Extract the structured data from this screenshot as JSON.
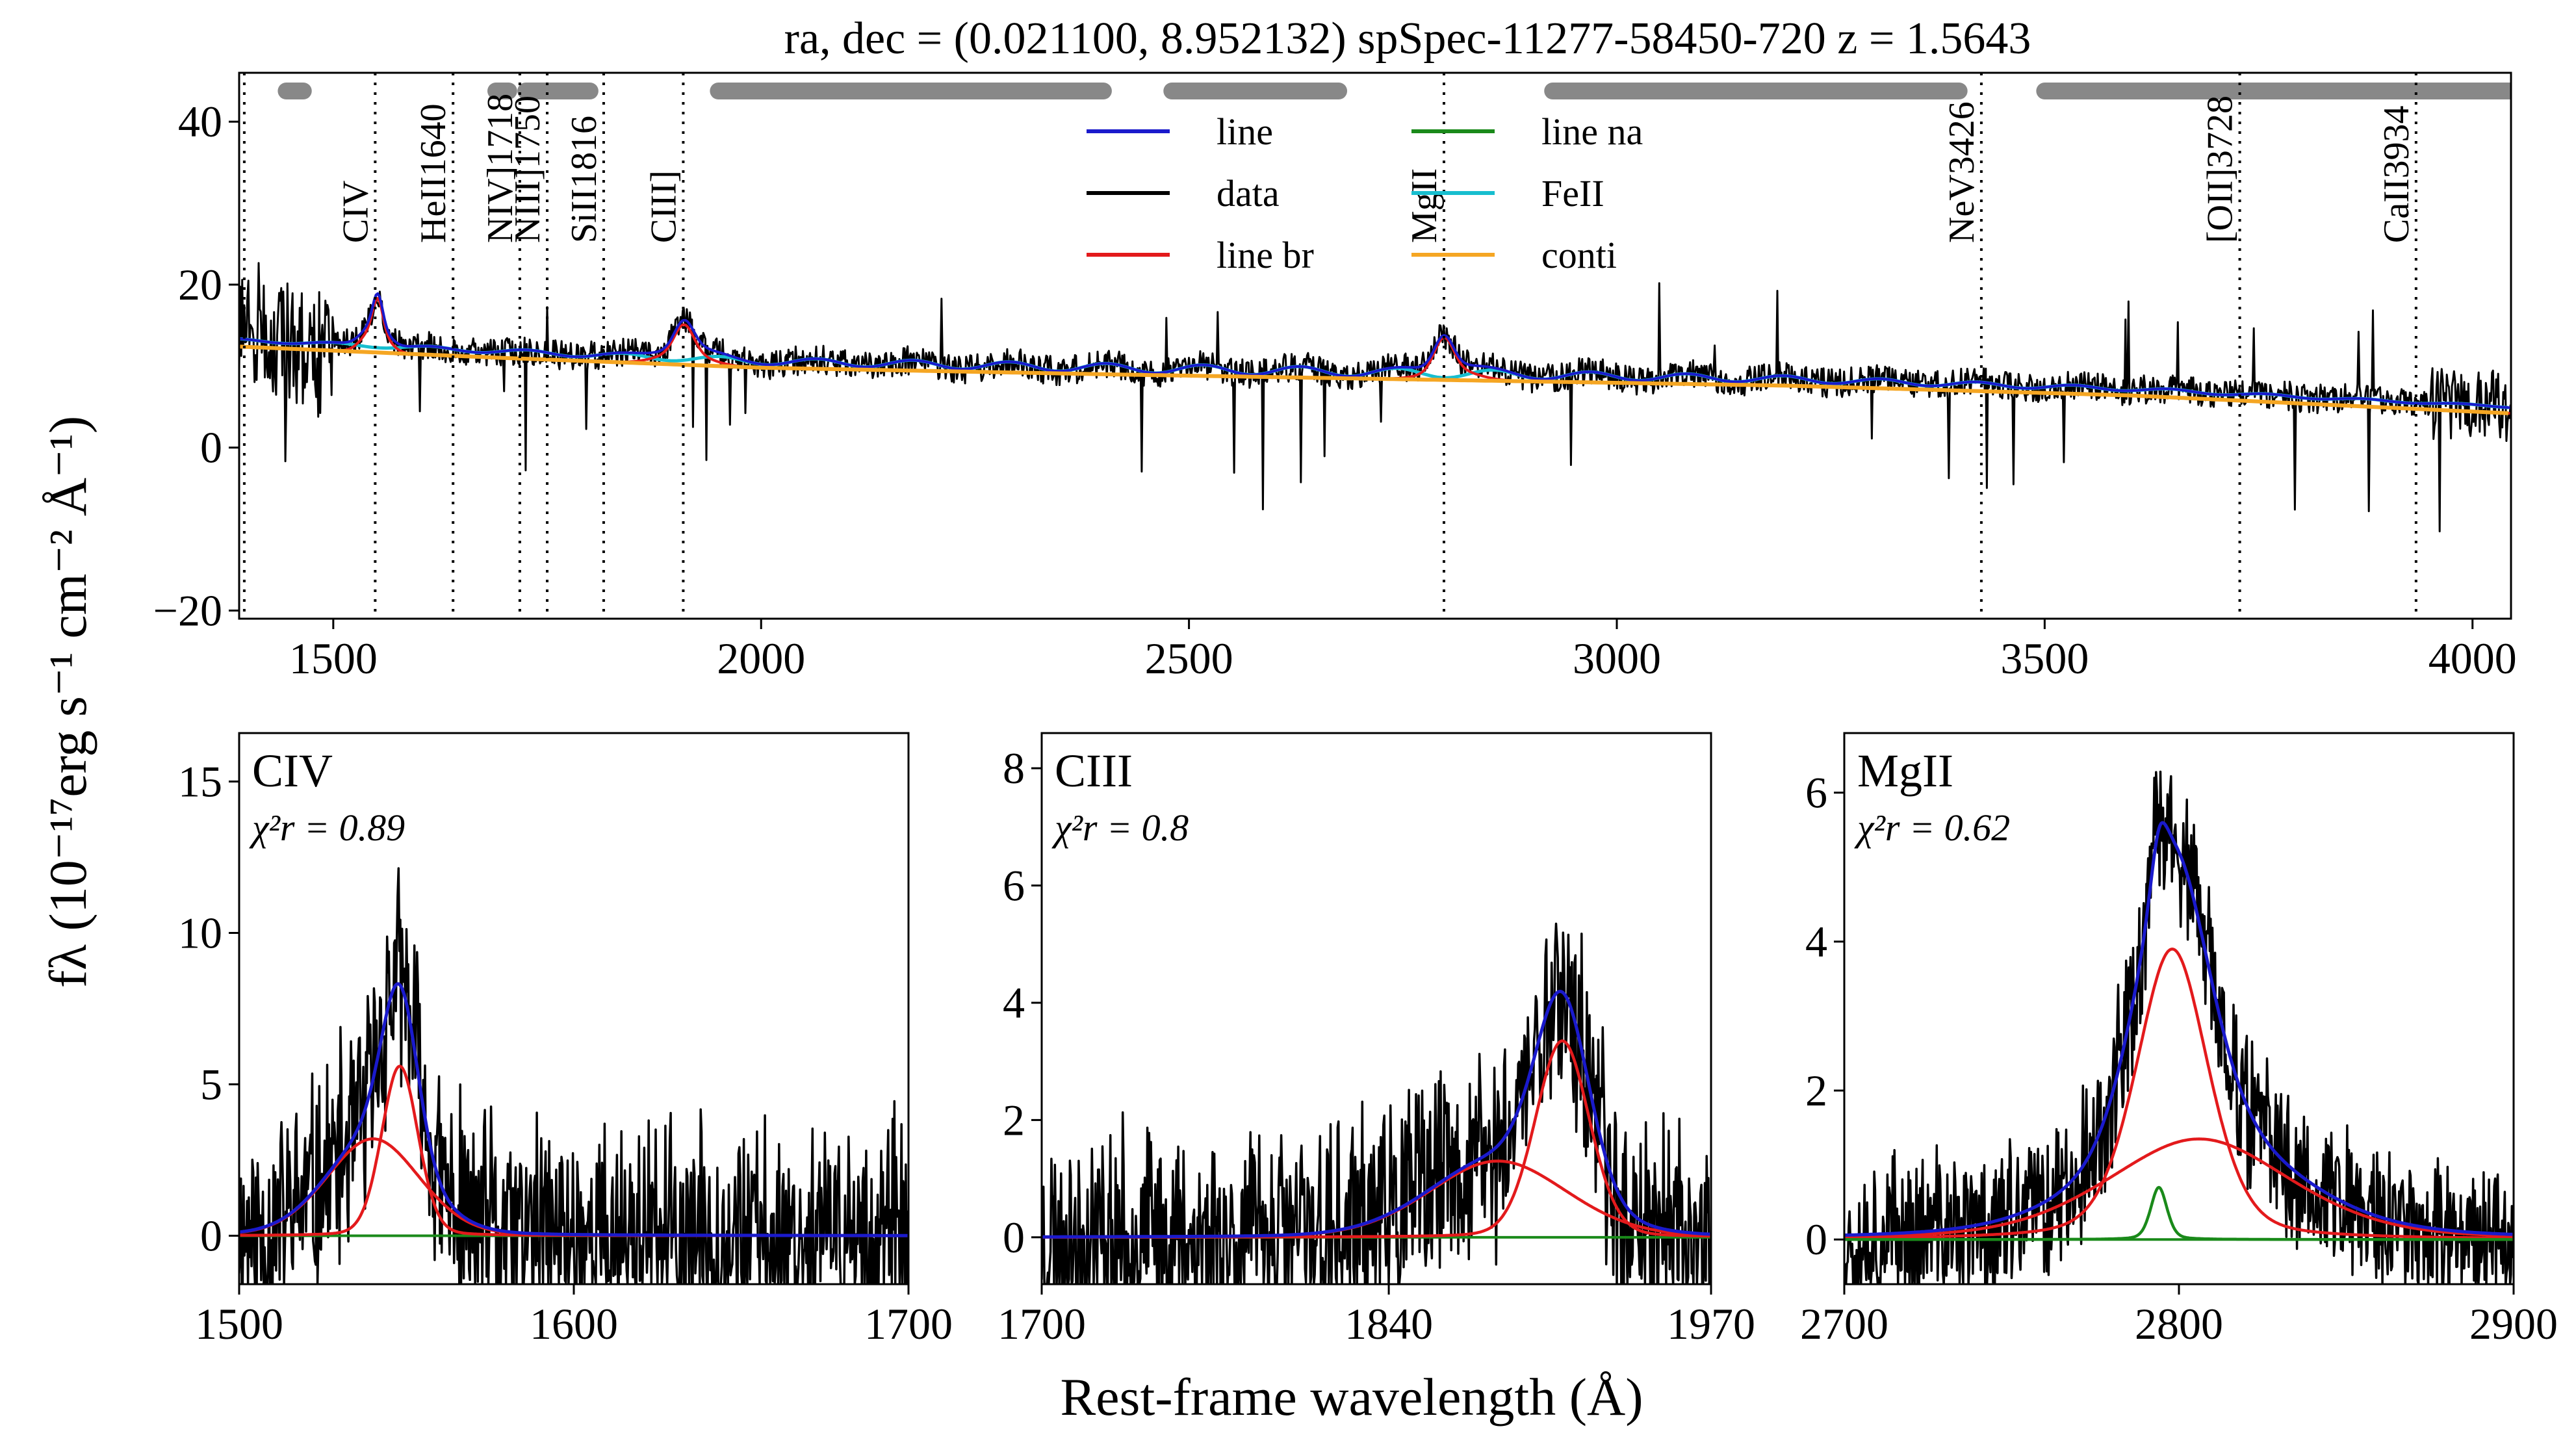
{
  "chart_data": [
    {
      "type": "line",
      "panel": "full-spectrum",
      "title": "ra, dec = (0.021100, 8.952132)   spSpec-11277-58450-720    z = 1.5643",
      "xlim": [
        1390,
        4045
      ],
      "ylim": [
        -21,
        46
      ],
      "xticks": [
        1500,
        2000,
        2500,
        3000,
        3500,
        4000
      ],
      "yticks": [
        -20,
        0,
        20,
        40
      ],
      "ytick_labels": [
        "−20",
        "0",
        "20",
        "40"
      ],
      "legend": {
        "placement": "top-center",
        "entries": [
          {
            "label": "line",
            "color": "#1a1acc"
          },
          {
            "label": "line na",
            "color": "#1a8a1a"
          },
          {
            "label": "data",
            "color": "#000000"
          },
          {
            "label": "FeII",
            "color": "#17becf"
          },
          {
            "label": "line br",
            "color": "#e31a1c"
          },
          {
            "label": "conti",
            "color": "#f5a623"
          }
        ]
      },
      "line_markers": [
        {
          "wave": 1396,
          "label": ""
        },
        {
          "wave": 1549,
          "label": "CIV"
        },
        {
          "wave": 1640,
          "label": "HeII1640"
        },
        {
          "wave": 1718,
          "label": "NIV]1718"
        },
        {
          "wave": 1750,
          "label": "NIII]1750"
        },
        {
          "wave": 1816,
          "label": "SiII1816"
        },
        {
          "wave": 1909,
          "label": "CIII]"
        },
        {
          "wave": 2798,
          "label": "MgII"
        },
        {
          "wave": 3426,
          "label": "NeV3426"
        },
        {
          "wave": 3728,
          "label": "[OII]3728"
        },
        {
          "wave": 3934,
          "label": "CaII3934"
        }
      ],
      "continuum_windows": [
        [
          1445,
          1465
        ],
        [
          1690,
          1705
        ],
        [
          1725,
          1800
        ],
        [
          1950,
          2400
        ],
        [
          2480,
          2675
        ],
        [
          2925,
          3400
        ],
        [
          3500,
          4045
        ]
      ],
      "series": [
        {
          "name": "conti",
          "x": [
            1390,
            1700,
            2000,
            2400,
            2800,
            3200,
            3600,
            4045
          ],
          "y": [
            12.4,
            11.0,
            9.8,
            9.0,
            8.3,
            7.6,
            6.4,
            4.2
          ]
        },
        {
          "name": "line br",
          "x": [
            1549,
            1909,
            2798
          ],
          "y": [
            5.6,
            3.4,
            3.9
          ]
        }
      ]
    },
    {
      "type": "line",
      "panel": "CIV",
      "title": "CIV",
      "chi2_label": "χ²r = 0.89",
      "xlim": [
        1500,
        1700
      ],
      "ylim": [
        -1.6,
        16.6
      ],
      "xticks": [
        1500,
        1600,
        1700
      ],
      "yticks": [
        0,
        5,
        10,
        15
      ],
      "components": [
        {
          "name": "line br",
          "center": 1540,
          "amplitude": 3.2,
          "sigma": 14
        },
        {
          "name": "line br",
          "center": 1548,
          "amplitude": 5.6,
          "sigma": 5.5
        }
      ]
    },
    {
      "type": "line",
      "panel": "CIII",
      "title": "CIII",
      "chi2_label": "χ²r = 0.8",
      "xlim": [
        1700,
        1970
      ],
      "ylim": [
        -0.8,
        8.6
      ],
      "xticks": [
        1700,
        1840,
        1970
      ],
      "yticks": [
        0,
        2,
        4,
        6,
        8
      ],
      "components": [
        {
          "name": "line br",
          "center": 1884,
          "amplitude": 1.3,
          "sigma": 28
        },
        {
          "name": "line br",
          "center": 1910,
          "amplitude": 3.35,
          "sigma": 11
        }
      ]
    },
    {
      "type": "line",
      "panel": "MgII",
      "title": "MgII",
      "chi2_label": "χ²r = 0.62",
      "xlim": [
        2700,
        2900
      ],
      "ylim": [
        -0.6,
        6.8
      ],
      "xticks": [
        2700,
        2800,
        2900
      ],
      "yticks": [
        0,
        2,
        4,
        6
      ],
      "components": [
        {
          "name": "line br",
          "center": 2806,
          "amplitude": 1.35,
          "sigma": 28
        },
        {
          "name": "line br",
          "center": 2798,
          "amplitude": 3.9,
          "sigma": 11
        },
        {
          "name": "line na",
          "center": 2794,
          "amplitude": 0.7,
          "sigma": 2.5
        }
      ]
    }
  ],
  "figure": {
    "ylabel": "fλ (10⁻¹⁷erg s⁻¹ cm⁻² Å⁻¹)",
    "xlabel": "Rest-frame wavelength (Å)"
  },
  "colors": {
    "data": "#000000",
    "line": "#1a1acc",
    "line_br": "#e31a1c",
    "line_na": "#1a8a1a",
    "feii": "#17becf",
    "conti": "#f5a623",
    "window": "#888888"
  }
}
